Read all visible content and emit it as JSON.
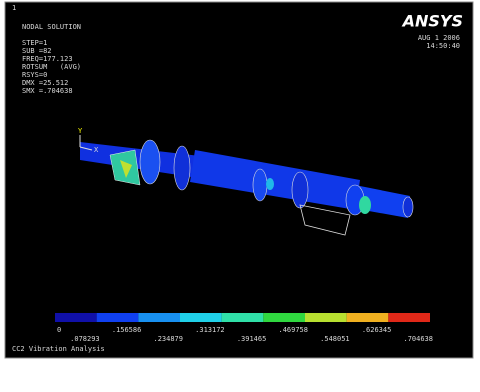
{
  "window_number": "1",
  "header": {
    "title": "NODAL SOLUTION",
    "info": [
      "STEP=1",
      "SUB =82",
      "FREQ=177.123",
      "ROTSUM   (AVG)",
      "RSYS=0",
      "DMX =25.512",
      "SMX =.704638"
    ]
  },
  "logo": "ANSYS",
  "date": "AUG  1 2006",
  "time": "14:50:40",
  "triad": {
    "y": "Y",
    "x": "X"
  },
  "legend": {
    "colors": [
      "#1010a8",
      "#1040f0",
      "#1890f0",
      "#20d0e8",
      "#30e0a8",
      "#30d840",
      "#b8e030",
      "#f0b020",
      "#e02818"
    ],
    "labels": [
      "0",
      ".078293",
      ".156586",
      ".234879",
      ".313172",
      ".391465",
      ".469758",
      ".548051",
      ".626345",
      ".704638"
    ]
  },
  "footer": "CC2 Vibration Analysis"
}
